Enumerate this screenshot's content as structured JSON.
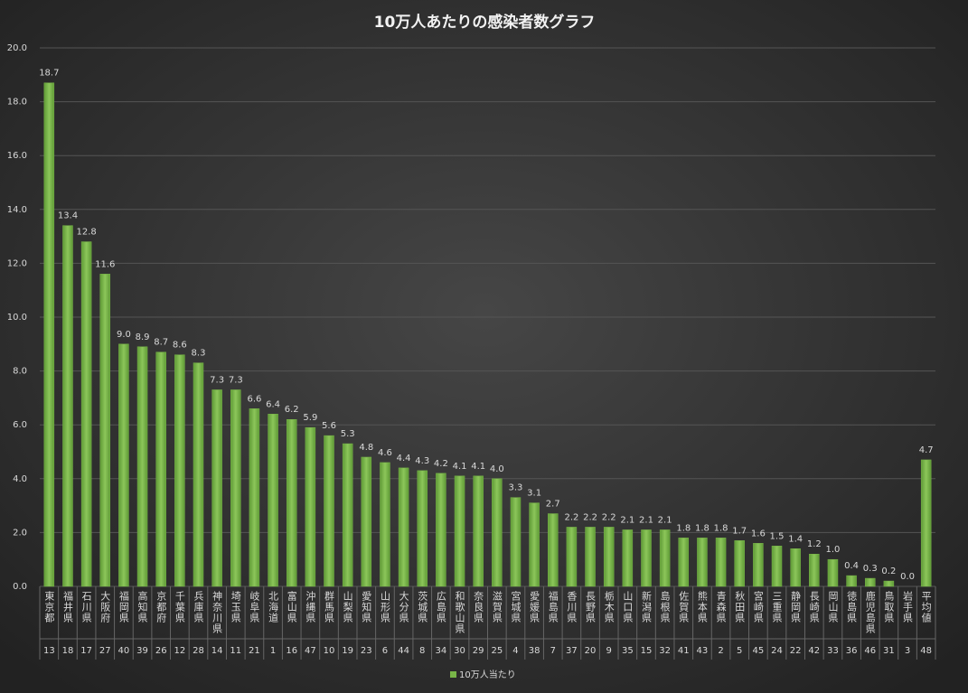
{
  "chart_data": {
    "type": "bar",
    "title": "10万人あたりの感染者数グラフ",
    "categories": [
      "東京都",
      "福井県",
      "石川県",
      "大阪府",
      "福岡県",
      "高知県",
      "京都府",
      "千葉県",
      "兵庫県",
      "神奈川県",
      "埼玉県",
      "岐阜県",
      "北海道",
      "富山県",
      "沖縄県",
      "群馬県",
      "山梨県",
      "愛知県",
      "山形県",
      "大分県",
      "茨城県",
      "広島県",
      "和歌山県",
      "奈良県",
      "滋賀県",
      "宮城県",
      "愛媛県",
      "福島県",
      "香川県",
      "長野県",
      "栃木県",
      "山口県",
      "新潟県",
      "島根県",
      "佐賀県",
      "熊本県",
      "青森県",
      "秋田県",
      "宮崎県",
      "三重県",
      "静岡県",
      "長崎県",
      "岡山県",
      "徳島県",
      "鹿児島県",
      "鳥取県",
      "岩手県",
      "平均値"
    ],
    "category_codes": [
      13,
      18,
      17,
      27,
      40,
      39,
      26,
      12,
      28,
      14,
      11,
      21,
      1,
      16,
      47,
      10,
      19,
      23,
      6,
      44,
      8,
      34,
      30,
      29,
      25,
      4,
      38,
      7,
      37,
      20,
      9,
      35,
      15,
      32,
      41,
      43,
      2,
      5,
      45,
      24,
      22,
      42,
      33,
      36,
      46,
      31,
      3,
      48
    ],
    "series": [
      {
        "name": "10万人当たり",
        "color": "#78b548",
        "values": [
          18.7,
          13.4,
          12.8,
          11.6,
          9.0,
          8.9,
          8.7,
          8.6,
          8.3,
          7.3,
          7.3,
          6.6,
          6.4,
          6.2,
          5.9,
          5.6,
          5.3,
          4.8,
          4.6,
          4.4,
          4.3,
          4.2,
          4.1,
          4.1,
          4.0,
          3.3,
          3.1,
          2.7,
          2.2,
          2.2,
          2.2,
          2.1,
          2.1,
          2.1,
          1.8,
          1.8,
          1.8,
          1.7,
          1.6,
          1.5,
          1.4,
          1.2,
          1.0,
          0.4,
          0.3,
          0.2,
          0.0,
          4.7
        ],
        "value_labels": [
          "18.7",
          "13.4",
          "12.8",
          "11.6",
          "9.0",
          "8.9",
          "8.7",
          "8.6",
          "8.3",
          "7.3",
          "7.3",
          "6.6",
          "6.4",
          "6.2",
          "5.9",
          "5.6",
          "5.3",
          "4.8",
          "4.6",
          "4.4",
          "4.3",
          "4.2",
          "4.1",
          "4.1",
          "4.0",
          "3.3",
          "3.1",
          "2.7",
          "2.2",
          "2.2",
          "2.2",
          "2.1",
          "2.1",
          "2.1",
          "1.8",
          "1.8",
          "1.8",
          "1.7",
          "1.6",
          "1.5",
          "1.4",
          "1.2",
          "1.0",
          "0.4",
          "0.3",
          "0.2",
          "0.0",
          "4.7"
        ]
      }
    ],
    "ylim": [
      0,
      20
    ],
    "yticks": [
      {
        "value": 0,
        "label": "0.0"
      },
      {
        "value": 2,
        "label": "2.0"
      },
      {
        "value": 4,
        "label": "4.0"
      },
      {
        "value": 6,
        "label": "6.0"
      },
      {
        "value": 8,
        "label": "8.0"
      },
      {
        "value": 10,
        "label": "10.0"
      },
      {
        "value": 12,
        "label": "12.0"
      },
      {
        "value": 14,
        "label": "14.0"
      },
      {
        "value": 16,
        "label": "16.0"
      },
      {
        "value": 18,
        "label": "18.0"
      },
      {
        "value": 20,
        "label": "20.0"
      }
    ],
    "grid": true
  }
}
